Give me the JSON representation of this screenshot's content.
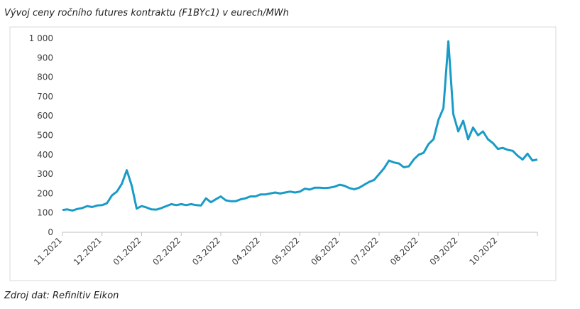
{
  "chart_data": {
    "type": "line",
    "title": "Vývoj ceny ročního futures kontraktu (F1BYc1) v eurech/MWh",
    "source": "Zdroj dat: Refinitiv Eikon",
    "categories": [
      "11.2021",
      null,
      null,
      null,
      null,
      null,
      null,
      null,
      "12.2021",
      null,
      null,
      null,
      null,
      null,
      null,
      null,
      "01.2022",
      null,
      null,
      null,
      null,
      null,
      null,
      null,
      "02.2022",
      null,
      null,
      null,
      null,
      null,
      null,
      null,
      "03.2022",
      null,
      null,
      null,
      null,
      null,
      null,
      null,
      "04.2022",
      null,
      null,
      null,
      null,
      null,
      null,
      null,
      "05.2022",
      null,
      null,
      null,
      null,
      null,
      null,
      null,
      "06.2022",
      null,
      null,
      null,
      null,
      null,
      null,
      null,
      "07.2022",
      null,
      null,
      null,
      null,
      null,
      null,
      null,
      "08.2022",
      null,
      null,
      null,
      null,
      null,
      null,
      null,
      "09.2022",
      null,
      null,
      null,
      null,
      null,
      null,
      null,
      "10.2022",
      null,
      null,
      null,
      null,
      null,
      null,
      null,
      null
    ],
    "series": [
      {
        "name": "F1BYc1",
        "color": "#1a9bc7",
        "values": [
          115,
          118,
          112,
          120,
          125,
          135,
          130,
          138,
          140,
          150,
          190,
          210,
          250,
          320,
          240,
          122,
          135,
          128,
          118,
          117,
          125,
          135,
          145,
          140,
          145,
          140,
          145,
          140,
          138,
          175,
          155,
          170,
          185,
          165,
          160,
          160,
          170,
          175,
          185,
          185,
          195,
          195,
          200,
          205,
          200,
          205,
          210,
          205,
          210,
          225,
          220,
          230,
          230,
          228,
          230,
          235,
          245,
          240,
          228,
          222,
          230,
          245,
          260,
          270,
          300,
          330,
          370,
          360,
          355,
          335,
          340,
          375,
          400,
          410,
          455,
          480,
          580,
          640,
          985,
          610,
          520,
          575,
          480,
          540,
          500,
          520,
          480,
          460,
          430,
          435,
          425,
          420,
          395,
          375,
          405,
          370,
          375
        ]
      }
    ],
    "ylim": [
      0,
      1000
    ],
    "yticks": [
      0,
      100,
      200,
      300,
      400,
      500,
      600,
      700,
      800,
      900,
      {
        "value": 1000,
        "label": "1 000"
      }
    ]
  }
}
